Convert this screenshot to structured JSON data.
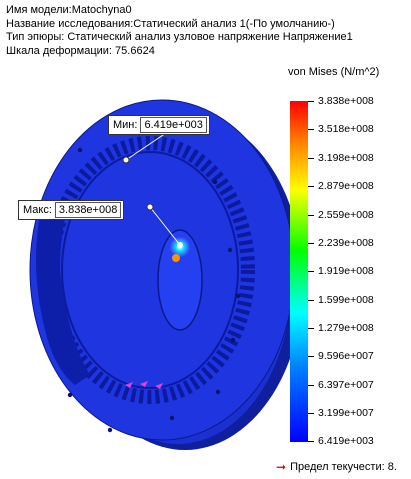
{
  "info": {
    "model_name": "Имя модели:Matochyna0",
    "study_name": "Название исследования:Статический анализ 1(-По умолчанию-)",
    "plot_type": "Тип эпюры: Статический анализ узловое напряжение Напряжение1",
    "deformation_scale": "Шкала деформации: 75.6624"
  },
  "callouts": {
    "min": {
      "label": "Мин:",
      "value": "6.419e+003"
    },
    "max": {
      "label": "Макс:",
      "value": "3.838e+008"
    }
  },
  "legend": {
    "title": "von Mises (N/m^2)",
    "ticks": [
      "3.838e+008",
      "3.518e+008",
      "3.198e+008",
      "2.879e+008",
      "2.559e+008",
      "2.239e+008",
      "1.919e+008",
      "1.599e+008",
      "1.279e+008",
      "9.596e+007",
      "6.397e+007",
      "3.199e+007",
      "6.419e+003"
    ],
    "yield_label": "Предел текучести: 8.",
    "colors": {
      "max": "#ff0000",
      "min": "#0000ff",
      "model": "#1e35e0",
      "yield_arrow": "#e00000"
    }
  }
}
